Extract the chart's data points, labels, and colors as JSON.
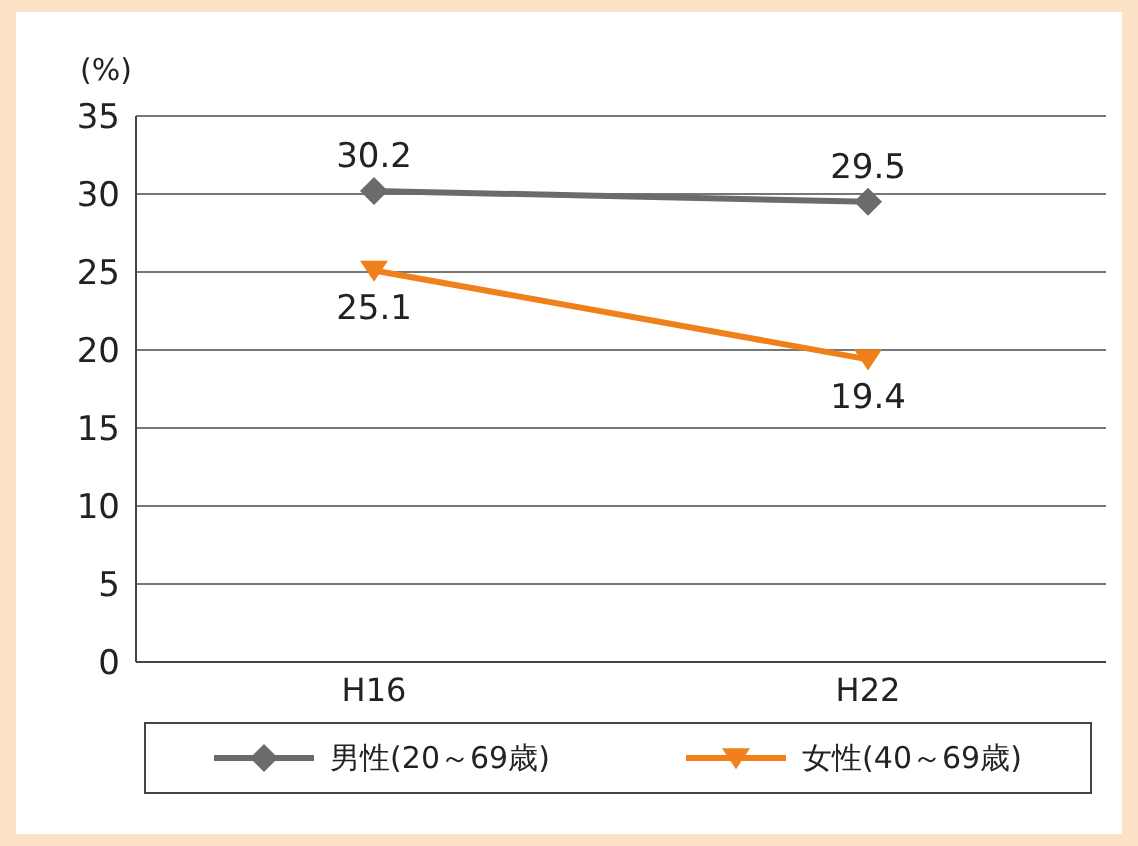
{
  "chart_data": {
    "type": "line",
    "ylabel": "(%)",
    "categories": [
      "H16",
      "H22"
    ],
    "series": [
      {
        "name": "男性(20～69歳)",
        "color": "#6b6b6b",
        "values": [
          30.2,
          29.5
        ],
        "marker": "diamond"
      },
      {
        "name": "女性(40～69歳)",
        "color": "#f08019",
        "values": [
          25.1,
          19.4
        ],
        "marker": "triangle"
      }
    ],
    "ylim": [
      0,
      35
    ],
    "yticks": [
      0,
      5,
      10,
      15,
      20,
      25,
      30,
      35
    ],
    "grid": "y",
    "legend": "bottom",
    "data_labels": true
  }
}
